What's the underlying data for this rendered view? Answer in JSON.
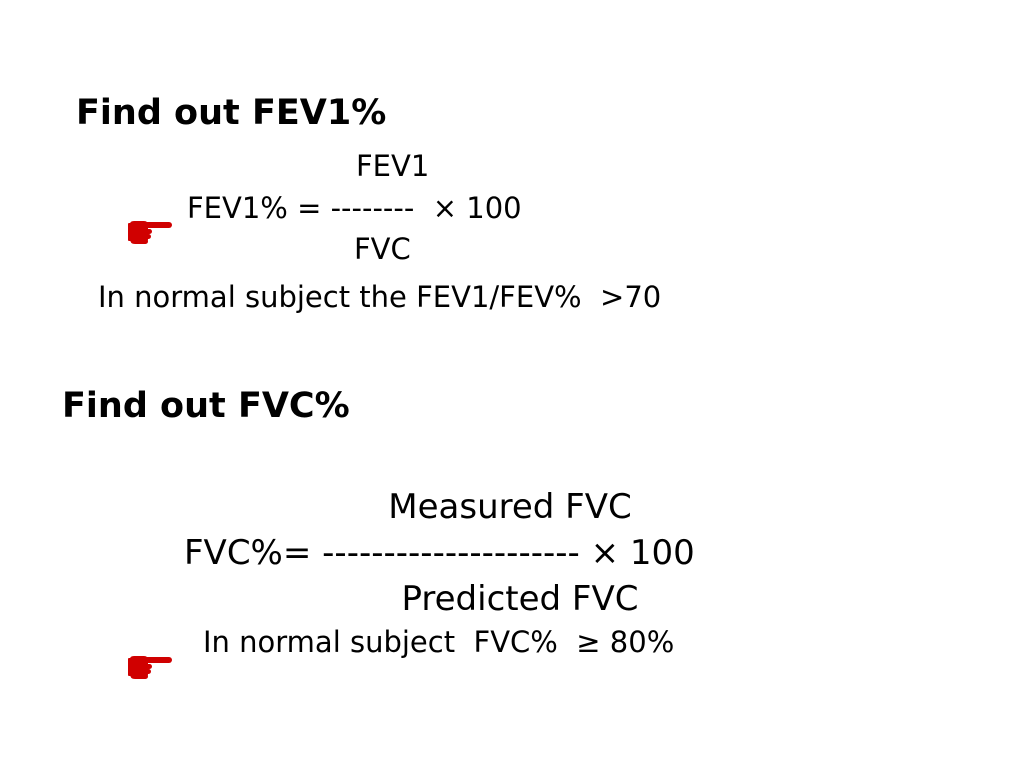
{
  "fev1_section": {
    "heading": "Find out FEV1%",
    "numerator": "FEV1",
    "formula": "FEV1% = --------  × 100",
    "denominator": "FVC",
    "normal_note": "In normal subject the FEV1/FEV%  >70"
  },
  "fvc_section": {
    "heading": "Find out FVC%",
    "numerator": "Measured FVC",
    "formula": "FVC%= --------------------- × 100",
    "denominator": "Predicted FVC",
    "normal_note": "In normal subject  FVC%  ≥ 80%"
  },
  "icons": {
    "bullet": "pointing-hand-icon",
    "bullet_color": "#d00000"
  }
}
